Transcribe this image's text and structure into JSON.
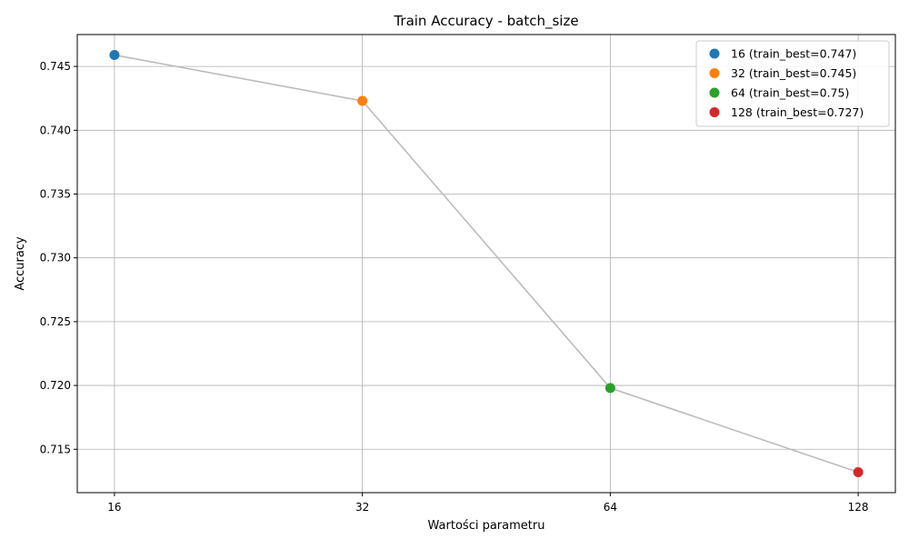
{
  "chart_data": {
    "type": "line",
    "title": "Train Accuracy - batch_size",
    "xlabel": "Wartości parametru",
    "ylabel": "Accuracy",
    "categories": [
      "16",
      "32",
      "64",
      "128"
    ],
    "values": [
      0.7459,
      0.7423,
      0.7198,
      0.7132
    ],
    "line_color": "#bbbbbb",
    "point_colors": [
      "#1f77b4",
      "#ff7f0e",
      "#2ca02c",
      "#d62728"
    ],
    "ylim": [
      0.7116,
      0.7475
    ],
    "yticks": [
      0.715,
      0.72,
      0.725,
      0.73,
      0.735,
      0.74,
      0.745
    ],
    "ytick_labels": [
      "0.715",
      "0.720",
      "0.725",
      "0.730",
      "0.735",
      "0.740",
      "0.745"
    ],
    "grid": true,
    "legend_position": "top-right",
    "legend": [
      {
        "label": "16 (train_best=0.747)",
        "color": "#1f77b4"
      },
      {
        "label": "32 (train_best=0.745)",
        "color": "#ff7f0e"
      },
      {
        "label": "64 (train_best=0.75)",
        "color": "#2ca02c"
      },
      {
        "label": "128 (train_best=0.727)",
        "color": "#d62728"
      }
    ]
  }
}
